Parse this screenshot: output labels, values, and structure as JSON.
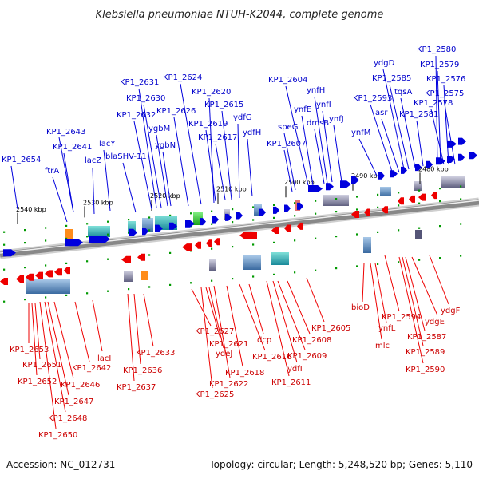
{
  "title": "Klebsiella pneumoniae NTUH-K2044, complete genome",
  "accession": "Accession: NC_012731",
  "summary": "Topology: circular; Length: 5,248,520 bp; Genes: 5,110",
  "colors": {
    "forward": "#0000dd",
    "reverse": "#ee0000",
    "forward_label": "#0000cc",
    "reverse_label": "#cc0000",
    "backbone": "#888888",
    "tick": "#009900"
  },
  "scale_labels": [
    "2540 kbp",
    "2530 kbp",
    "2520 kbp",
    "2510 kbp",
    "2500 kbp",
    "2490 kbp",
    "2480 kbp"
  ],
  "forward_genes": [
    "KP1_2654",
    "ftrA",
    "lacZ",
    "KP1_2641",
    "KP1_2643",
    "lacY",
    "blaSHV-11",
    "KP1_2632",
    "KP1_2631",
    "KP1_2630",
    "ygbM",
    "ygbN",
    "KP1_2626",
    "KP1_2624",
    "KP1_2620",
    "KP1_2619",
    "KP1_2617",
    "KP1_2615",
    "ydfG",
    "ydfH",
    "KP1_2607",
    "speG",
    "KP1_2604",
    "ynfE",
    "dmsB",
    "ynfH",
    "ynfI",
    "ynfJ",
    "ynfM",
    "KP1_2593",
    "asr",
    "ydgD",
    "KP1_2585",
    "tqsA",
    "KP1_2581",
    "KP1_2580",
    "KP1_2579",
    "KP1_2578",
    "KP1_2576",
    "KP1_2575"
  ],
  "reverse_genes": [
    "KP1_2653",
    "KP1_2651",
    "KP1_2652",
    "KP1_2646",
    "KP1_2647",
    "KP1_2648",
    "KP1_2650",
    "lacI",
    "KP1_2642",
    "KP1_2633",
    "KP1_2636",
    "KP1_2637",
    "KP1_2627",
    "KP1_2621",
    "ydeJ",
    "KP1_2625",
    "KP1_2622",
    "KP1_2618",
    "KP1_2616",
    "dcp",
    "KP1_2608",
    "KP1_2609",
    "ydfI",
    "KP1_2611",
    "KP1_2605",
    "bioD",
    "ynfL",
    "mlc",
    "KP1_2594",
    "ydgE",
    "KP1_2587",
    "KP1_2589",
    "KP1_2590",
    "ydgF"
  ]
}
